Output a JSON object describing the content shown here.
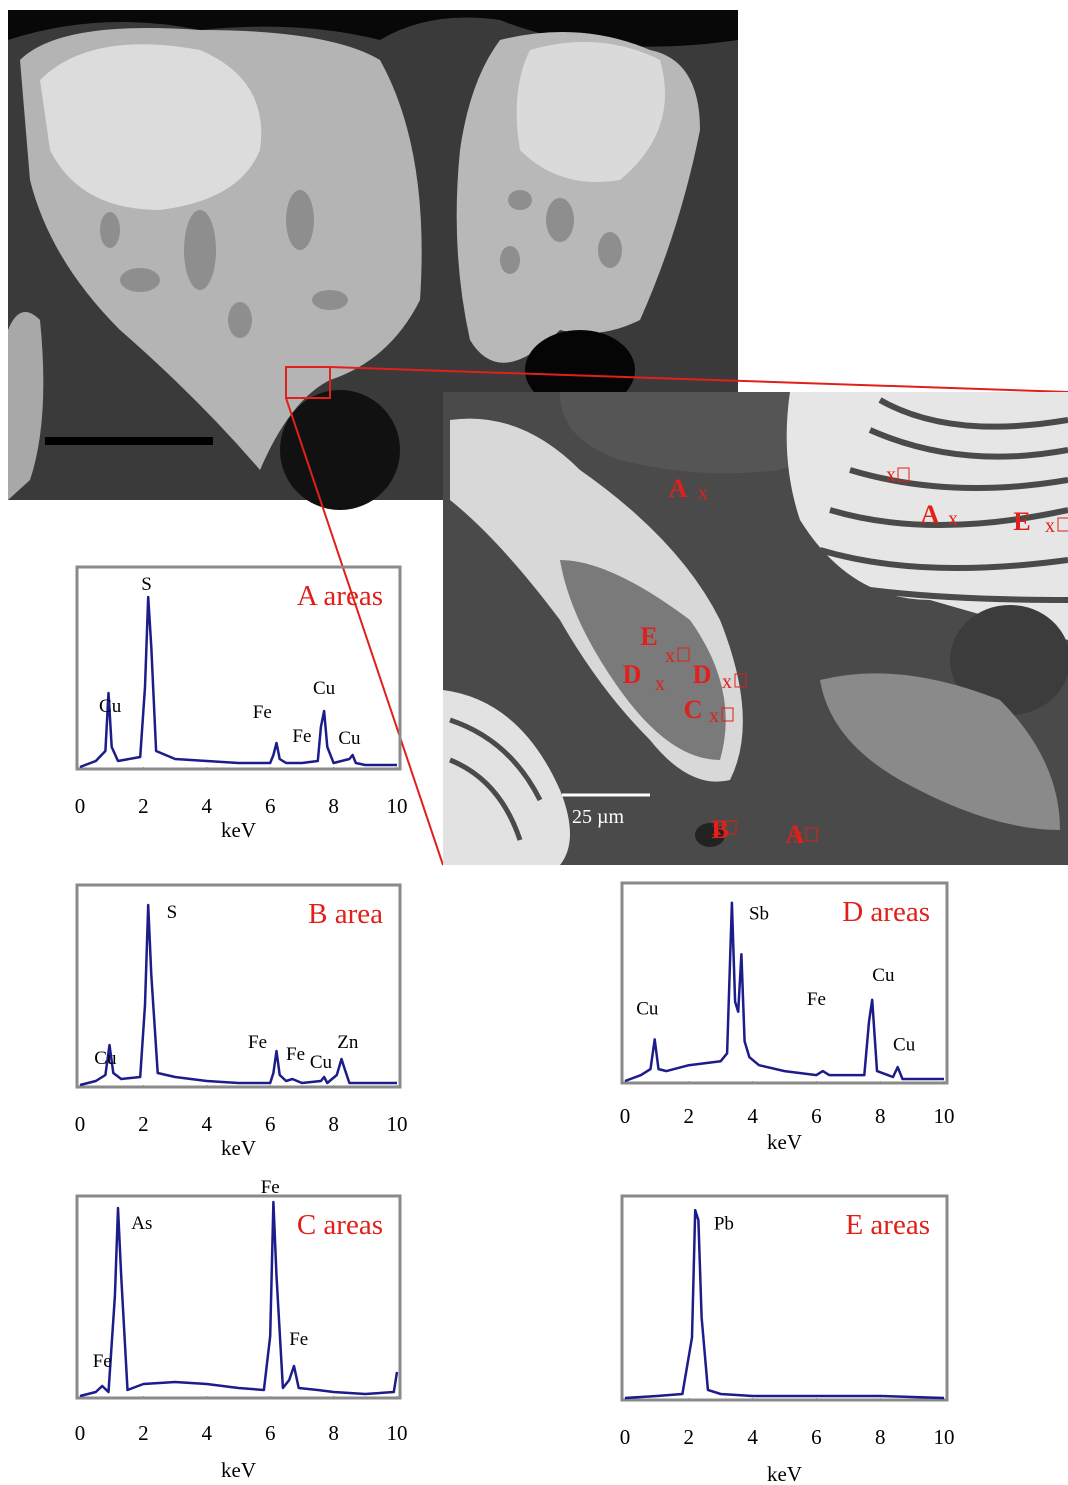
{
  "chart_data": [
    {
      "type": "line",
      "title": "A areas",
      "xlabel": "keV",
      "xlim": [
        0,
        10
      ],
      "xticks": [
        0,
        2,
        4,
        6,
        8,
        10
      ],
      "ylim": [
        0,
        100
      ],
      "color": "#1c1c8a",
      "x": [
        0,
        0.5,
        0.8,
        0.9,
        1.0,
        1.2,
        1.9,
        2.05,
        2.15,
        2.25,
        2.4,
        3,
        4,
        5,
        6,
        6.1,
        6.2,
        6.3,
        6.5,
        7,
        7.5,
        7.6,
        7.7,
        7.8,
        8.0,
        8.5,
        8.6,
        8.7,
        9,
        10
      ],
      "values": [
        0,
        3,
        8,
        37,
        10,
        3,
        5,
        40,
        85,
        60,
        8,
        4,
        3,
        2,
        2,
        6,
        12,
        4,
        2,
        2,
        3,
        20,
        28,
        10,
        2,
        4,
        6,
        2,
        1,
        1
      ],
      "annotations": [
        {
          "text": "S",
          "x": 2.1,
          "y": 92
        },
        {
          "text": "Cu",
          "x": 0.95,
          "y": 31
        },
        {
          "text": "Fe",
          "x": 5.75,
          "y": 28
        },
        {
          "text": "Cu",
          "x": 7.7,
          "y": 40
        },
        {
          "text": "Fe",
          "x": 7.0,
          "y": 16
        },
        {
          "text": "Cu",
          "x": 8.5,
          "y": 15
        }
      ]
    },
    {
      "type": "line",
      "title": "B area",
      "xlabel": "keV",
      "xlim": [
        0,
        10
      ],
      "xticks": [
        0,
        2,
        4,
        6,
        8,
        10
      ],
      "ylim": [
        0,
        100
      ],
      "color": "#1c1c8a",
      "x": [
        0,
        0.5,
        0.8,
        0.93,
        1.05,
        1.3,
        1.9,
        2.05,
        2.15,
        2.25,
        2.45,
        3,
        4,
        5,
        6,
        6.1,
        6.2,
        6.3,
        6.5,
        6.7,
        7,
        7.6,
        7.7,
        7.8,
        8.1,
        8.25,
        8.35,
        8.5,
        9,
        10
      ],
      "values": [
        0,
        2,
        5,
        20,
        6,
        3,
        4,
        40,
        90,
        55,
        6,
        4,
        2,
        1,
        1,
        6,
        17,
        5,
        2,
        3,
        1,
        2,
        4,
        1,
        5,
        13,
        8,
        1,
        1,
        1
      ],
      "annotations": [
        {
          "text": "S",
          "x": 2.9,
          "y": 87
        },
        {
          "text": "Cu",
          "x": 0.8,
          "y": 14
        },
        {
          "text": "Fe",
          "x": 5.6,
          "y": 22
        },
        {
          "text": "Fe",
          "x": 6.8,
          "y": 16
        },
        {
          "text": "Cu",
          "x": 7.6,
          "y": 12
        },
        {
          "text": "Zn",
          "x": 8.45,
          "y": 22
        }
      ]
    },
    {
      "type": "line",
      "title": "C areas",
      "xlabel": "keV",
      "xlim": [
        0,
        10
      ],
      "xticks": [
        0,
        2,
        4,
        6,
        8,
        10
      ],
      "ylim": [
        0,
        100
      ],
      "color": "#1c1c8a",
      "x": [
        0,
        0.5,
        0.7,
        0.9,
        1.1,
        1.2,
        1.3,
        1.5,
        2,
        3,
        4,
        5,
        5.8,
        6.0,
        6.1,
        6.2,
        6.4,
        6.6,
        6.75,
        6.9,
        7.5,
        8,
        9,
        9.9,
        10
      ],
      "values": [
        0,
        2,
        5,
        2,
        50,
        94,
        60,
        3,
        6,
        7,
        6,
        4,
        3,
        30,
        97,
        60,
        4,
        8,
        15,
        4,
        3,
        2,
        1,
        2,
        12
      ],
      "annotations": [
        {
          "text": "As",
          "x": 1.95,
          "y": 87
        },
        {
          "text": "Fe",
          "x": 6.0,
          "y": 105
        },
        {
          "text": "Fe",
          "x": 6.9,
          "y": 29
        },
        {
          "text": "Fe",
          "x": 0.7,
          "y": 18
        }
      ]
    },
    {
      "type": "line",
      "title": "D areas",
      "xlabel": "keV",
      "xlim": [
        0,
        10
      ],
      "xticks": [
        0,
        2,
        4,
        6,
        8,
        10
      ],
      "ylim": [
        0,
        100
      ],
      "color": "#1c1c8a",
      "x": [
        0,
        0.5,
        0.8,
        0.93,
        1.05,
        1.3,
        2,
        3,
        3.2,
        3.35,
        3.45,
        3.55,
        3.65,
        3.75,
        3.9,
        4.2,
        5,
        6,
        6.2,
        6.4,
        7,
        7.5,
        7.65,
        7.75,
        7.9,
        8.4,
        8.55,
        8.7,
        9,
        10
      ],
      "values": [
        0,
        3,
        6,
        21,
        6,
        5,
        8,
        10,
        14,
        90,
        40,
        35,
        64,
        20,
        12,
        8,
        5,
        3,
        5,
        3,
        3,
        3,
        30,
        41,
        5,
        2,
        7,
        1,
        1,
        1
      ],
      "annotations": [
        {
          "text": "Sb",
          "x": 4.2,
          "y": 85
        },
        {
          "text": "Cu",
          "x": 0.7,
          "y": 37
        },
        {
          "text": "Fe",
          "x": 6.0,
          "y": 42
        },
        {
          "text": "Cu",
          "x": 8.1,
          "y": 54
        },
        {
          "text": "Cu",
          "x": 8.75,
          "y": 19
        }
      ]
    },
    {
      "type": "line",
      "title": "E areas",
      "xlabel": "keV",
      "xlim": [
        0,
        10
      ],
      "xticks": [
        0,
        2,
        4,
        6,
        8,
        10
      ],
      "ylim": [
        0,
        100
      ],
      "color": "#1c1c8a",
      "x": [
        0,
        1,
        1.8,
        2.1,
        2.2,
        2.3,
        2.4,
        2.6,
        3,
        4,
        6,
        8,
        10
      ],
      "values": [
        0,
        1,
        2,
        30,
        93,
        88,
        40,
        4,
        2,
        1,
        1,
        1,
        0
      ],
      "annotations": [
        {
          "text": "Pb",
          "x": 3.1,
          "y": 87
        }
      ]
    }
  ],
  "image_labels": {
    "scale_bar": "25 µm",
    "marker_symbol": "x",
    "markers": [
      "A",
      "A",
      "E",
      "E",
      "D",
      "D",
      "C",
      "B",
      "A"
    ]
  }
}
